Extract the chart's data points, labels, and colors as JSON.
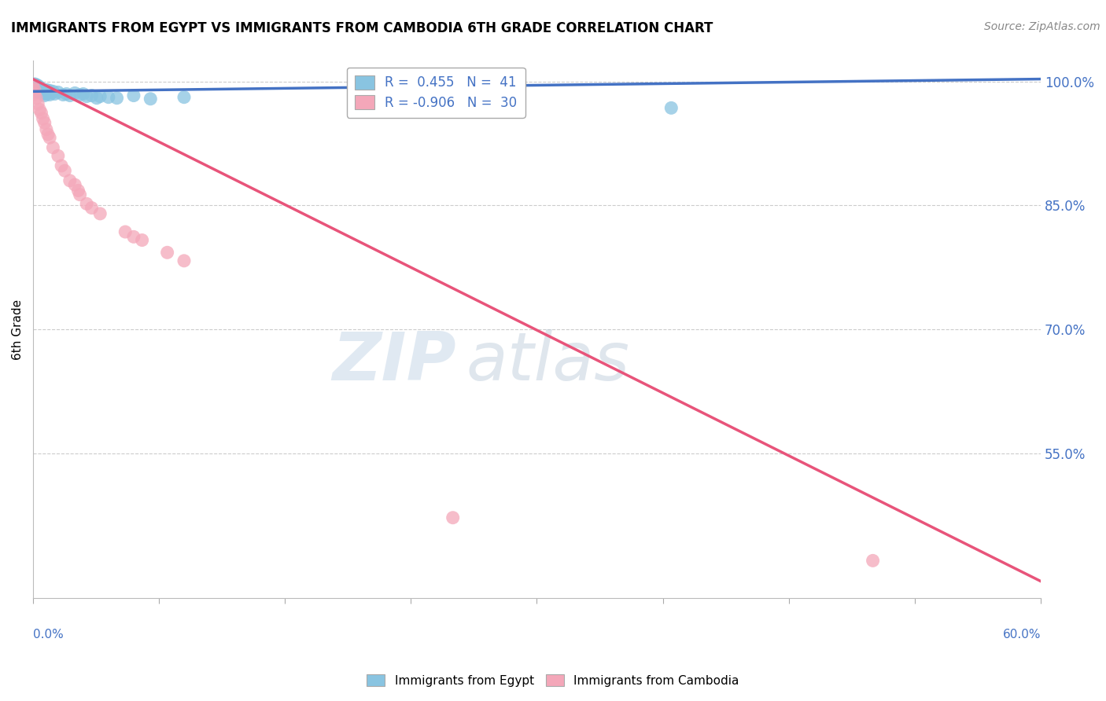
{
  "title": "IMMIGRANTS FROM EGYPT VS IMMIGRANTS FROM CAMBODIA 6TH GRADE CORRELATION CHART",
  "source": "Source: ZipAtlas.com",
  "ylabel": "6th Grade",
  "xmin": 0.0,
  "xmax": 0.6,
  "ymin": 0.375,
  "ymax": 1.025,
  "yticks": [
    1.0,
    0.85,
    0.7,
    0.55
  ],
  "ytick_labels": [
    "100.0%",
    "85.0%",
    "70.0%",
    "55.0%"
  ],
  "blue_R": 0.455,
  "blue_N": 41,
  "pink_R": -0.906,
  "pink_N": 30,
  "blue_color": "#89c4e1",
  "pink_color": "#f4a7b9",
  "blue_line_color": "#4472c4",
  "pink_line_color": "#e8547a",
  "background_color": "#ffffff",
  "watermark_zip": "ZIP",
  "watermark_atlas": "atlas",
  "blue_line_x0": 0.0,
  "blue_line_y0": 0.988,
  "blue_line_x1": 0.6,
  "blue_line_y1": 1.003,
  "pink_line_x0": 0.0,
  "pink_line_y0": 1.003,
  "pink_line_x1": 0.6,
  "pink_line_y1": 0.395,
  "blue_scatter_x": [
    0.0,
    0.001,
    0.001,
    0.002,
    0.002,
    0.003,
    0.003,
    0.003,
    0.004,
    0.004,
    0.005,
    0.005,
    0.006,
    0.006,
    0.007,
    0.007,
    0.008,
    0.008,
    0.009,
    0.01,
    0.01,
    0.011,
    0.012,
    0.013,
    0.015,
    0.018,
    0.02,
    0.022,
    0.025,
    0.028,
    0.03,
    0.032,
    0.035,
    0.038,
    0.04,
    0.045,
    0.05,
    0.06,
    0.07,
    0.09,
    0.38
  ],
  "blue_scatter_y": [
    0.993,
    0.997,
    0.994,
    0.996,
    0.992,
    0.995,
    0.991,
    0.987,
    0.993,
    0.989,
    0.991,
    0.986,
    0.99,
    0.985,
    0.988,
    0.983,
    0.99,
    0.985,
    0.987,
    0.989,
    0.984,
    0.986,
    0.988,
    0.985,
    0.987,
    0.984,
    0.985,
    0.983,
    0.986,
    0.984,
    0.985,
    0.982,
    0.983,
    0.98,
    0.982,
    0.981,
    0.98,
    0.983,
    0.979,
    0.981,
    0.968
  ],
  "pink_scatter_x": [
    0.0,
    0.001,
    0.001,
    0.002,
    0.003,
    0.004,
    0.005,
    0.006,
    0.007,
    0.008,
    0.009,
    0.01,
    0.012,
    0.015,
    0.017,
    0.019,
    0.022,
    0.025,
    0.027,
    0.028,
    0.032,
    0.035,
    0.04,
    0.055,
    0.06,
    0.065,
    0.08,
    0.09,
    0.25,
    0.5
  ],
  "pink_scatter_y": [
    0.995,
    0.99,
    0.985,
    0.98,
    0.973,
    0.966,
    0.962,
    0.955,
    0.95,
    0.942,
    0.936,
    0.932,
    0.92,
    0.91,
    0.898,
    0.892,
    0.88,
    0.875,
    0.868,
    0.863,
    0.852,
    0.847,
    0.84,
    0.818,
    0.812,
    0.808,
    0.793,
    0.783,
    0.472,
    0.42
  ]
}
